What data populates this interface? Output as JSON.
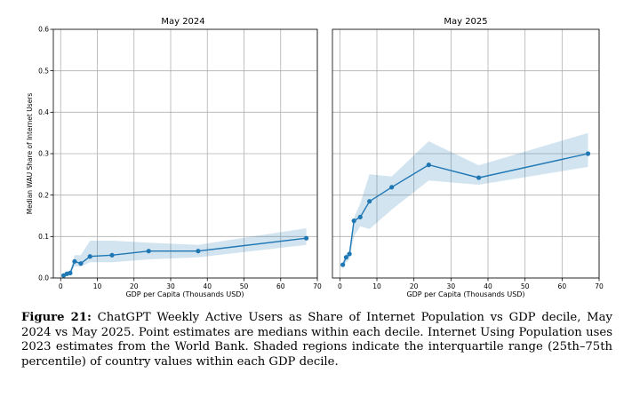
{
  "chart_data": [
    {
      "type": "line",
      "title": "May 2024",
      "xlabel": "GDP per Capita (Thousands USD)",
      "ylabel": "Median WAU Share of Internet Users",
      "xlim": [
        -2,
        70
      ],
      "ylim": [
        0,
        0.6
      ],
      "xticks": [
        "0",
        "10",
        "20",
        "30",
        "40",
        "50",
        "60",
        "70"
      ],
      "yticks": [
        "0.0",
        "0.1",
        "0.2",
        "0.3",
        "0.4",
        "0.5",
        "0.6"
      ],
      "grid": true,
      "series": [
        {
          "color": "#1f77b4",
          "x": [
            0.8,
            1.7,
            2.6,
            3.8,
            5.5,
            8.0,
            14.0,
            24.0,
            37.5,
            67.0
          ],
          "y": [
            0.006,
            0.01,
            0.012,
            0.04,
            0.035,
            0.052,
            0.055,
            0.065,
            0.065,
            0.096
          ],
          "q25": [
            0.002,
            0.005,
            0.008,
            0.028,
            0.028,
            0.038,
            0.038,
            0.045,
            0.05,
            0.08
          ],
          "q75": [
            0.012,
            0.016,
            0.018,
            0.055,
            0.055,
            0.09,
            0.09,
            0.085,
            0.08,
            0.12
          ]
        }
      ]
    },
    {
      "type": "line",
      "title": "May 2025",
      "xlabel": "GDP per Capita (Thousands USD)",
      "ylabel": "",
      "xlim": [
        -2,
        70
      ],
      "ylim": [
        0,
        0.6
      ],
      "xticks": [
        "0",
        "10",
        "20",
        "30",
        "40",
        "50",
        "60",
        "70"
      ],
      "yticks": [],
      "grid": true,
      "series": [
        {
          "color": "#1f77b4",
          "x": [
            0.8,
            1.7,
            2.6,
            3.8,
            5.5,
            8.0,
            14.0,
            24.0,
            37.5,
            67.0
          ],
          "y": [
            0.032,
            0.05,
            0.058,
            0.138,
            0.147,
            0.185,
            0.219,
            0.273,
            0.242,
            0.3
          ],
          "q25": [
            0.022,
            0.038,
            0.045,
            0.1,
            0.125,
            0.118,
            0.165,
            0.235,
            0.225,
            0.268
          ],
          "q75": [
            0.04,
            0.058,
            0.065,
            0.145,
            0.18,
            0.25,
            0.245,
            0.33,
            0.272,
            0.35
          ]
        }
      ]
    }
  ],
  "caption": {
    "label": "Figure 21:",
    "text": "ChatGPT Weekly Active Users as Share of Internet Population vs GDP decile, May 2024 vs May 2025. Point estimates are medians within each decile. Internet Using Population uses 2023 estimates from the World Bank. Shaded regions indicate the interquartile range (25th–75th percentile) of country values within each GDP decile."
  }
}
